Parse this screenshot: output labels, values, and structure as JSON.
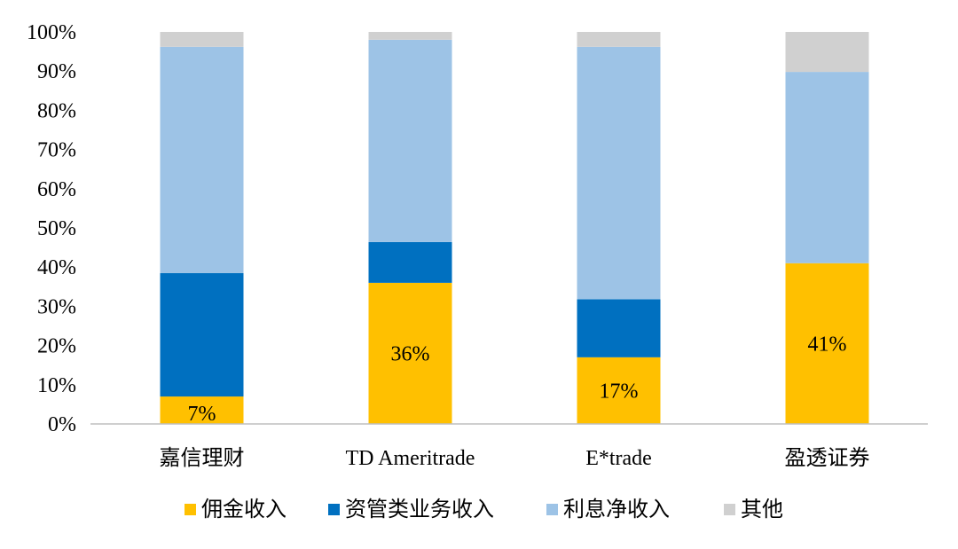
{
  "chart_data": {
    "type": "bar",
    "stacked": true,
    "categories": [
      "嘉信理财",
      "TD Ameritrade",
      "E*trade",
      "盈透证券"
    ],
    "series": [
      {
        "name": "佣金收入",
        "color": "#FFC000",
        "values": [
          7,
          36,
          17,
          41
        ]
      },
      {
        "name": "资管类业务收入",
        "color": "#0070C0",
        "values": [
          31.5,
          10.4,
          14.8,
          0
        ]
      },
      {
        "name": "利息净收入",
        "color": "#9DC3E6",
        "values": [
          57.7,
          51.6,
          64.4,
          48.8
        ]
      },
      {
        "name": "其他",
        "color": "#D0D0D0",
        "values": [
          3.8,
          2.0,
          3.8,
          10.2
        ]
      }
    ],
    "data_labels": [
      "7%",
      "36%",
      "17%",
      "41%"
    ],
    "y_ticks": [
      "0%",
      "10%",
      "20%",
      "30%",
      "40%",
      "50%",
      "60%",
      "70%",
      "80%",
      "90%",
      "100%"
    ],
    "ylim": [
      0,
      100
    ],
    "grid": false,
    "legend_position": "bottom"
  }
}
